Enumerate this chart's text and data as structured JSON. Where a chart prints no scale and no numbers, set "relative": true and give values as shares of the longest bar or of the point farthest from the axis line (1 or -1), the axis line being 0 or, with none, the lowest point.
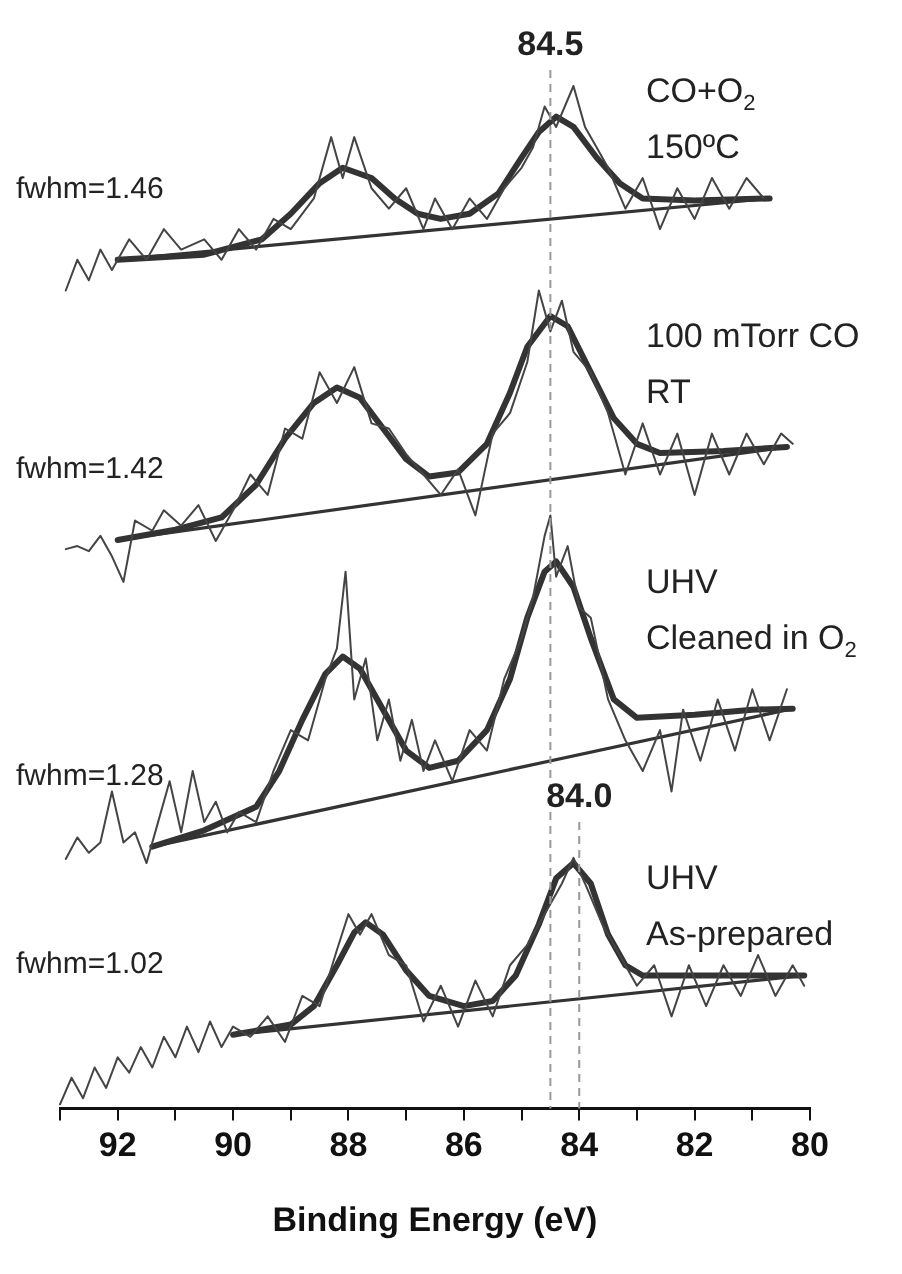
{
  "chart_data": {
    "type": "line",
    "relative": true,
    "xlabel": "Binding Energy (eV)",
    "xlim": [
      93,
      80
    ],
    "xticks": [
      {
        "value": 93,
        "label": null
      },
      92,
      {
        "value": 91,
        "label": null
      },
      90,
      {
        "value": 89,
        "label": null
      },
      88,
      {
        "value": 87,
        "label": null
      },
      86,
      {
        "value": 85,
        "label": null
      },
      84,
      {
        "value": 83,
        "label": null
      },
      82,
      {
        "value": 81,
        "label": null
      },
      80
    ],
    "legend": false,
    "marker": "none",
    "line_style": "solid",
    "series": [
      {
        "name": "CO+O$_{2}$\n150ºC",
        "color": "#444444",
        "x": [
          92.9,
          92.7,
          92.5,
          92.3,
          92.1,
          91.8,
          91.5,
          91.2,
          90.9,
          90.5,
          90.2,
          89.9,
          89.6,
          89.3,
          89.0,
          88.6,
          88.3,
          88.1,
          87.9,
          87.6,
          87.3,
          87.0,
          86.7,
          86.5,
          86.2,
          85.9,
          85.6,
          85.3,
          85.0,
          84.8,
          84.6,
          84.4,
          84.1,
          83.9,
          83.7,
          83.5,
          83.2,
          82.9,
          82.6,
          82.3,
          82.0,
          81.7,
          81.4,
          81.1,
          80.8
        ],
        "values": [
          0.8,
          0.83,
          0.81,
          0.84,
          0.82,
          0.85,
          0.83,
          0.86,
          0.84,
          0.85,
          0.83,
          0.86,
          0.84,
          0.87,
          0.86,
          0.89,
          0.95,
          0.91,
          0.95,
          0.9,
          0.88,
          0.9,
          0.86,
          0.89,
          0.86,
          0.89,
          0.87,
          0.9,
          0.92,
          0.94,
          0.98,
          0.96,
          1.0,
          0.96,
          0.94,
          0.92,
          0.88,
          0.91,
          0.86,
          0.9,
          0.87,
          0.91,
          0.88,
          0.91,
          0.89
        ]
      },
      {
        "color": "#333333",
        "x": [
          92,
          90.5,
          89.5,
          89,
          88.5,
          88.1,
          87.6,
          87.2,
          86.8,
          86.4,
          85.9,
          85.4,
          85,
          84.7,
          84.4,
          84.1,
          83.7,
          83.3,
          82.9,
          82,
          80.7
        ],
        "values": [
          0.83,
          0.835,
          0.85,
          0.875,
          0.905,
          0.92,
          0.91,
          0.89,
          0.875,
          0.87,
          0.875,
          0.895,
          0.93,
          0.955,
          0.97,
          0.96,
          0.93,
          0.905,
          0.89,
          0.888,
          0.89
        ]
      },
      {
        "color": "#333333",
        "x": [
          92,
          80.7
        ],
        "values": [
          0.83,
          0.89
        ]
      },
      {
        "name": "100 mTorr CO\nRT",
        "color": "#444444",
        "x": [
          92.9,
          92.7,
          92.5,
          92.3,
          92.1,
          91.9,
          91.7,
          91.4,
          91.2,
          90.9,
          90.6,
          90.3,
          90.0,
          89.7,
          89.4,
          89.1,
          88.8,
          88.5,
          88.2,
          87.9,
          87.6,
          87.3,
          87.0,
          86.7,
          86.4,
          86.1,
          85.8,
          85.5,
          85.2,
          84.9,
          84.7,
          84.5,
          84.3,
          84.1,
          83.8,
          83.5,
          83.2,
          82.9,
          82.6,
          82.3,
          82.0,
          81.7,
          81.4,
          81.1,
          80.8,
          80.5,
          80.3
        ],
        "values": [
          0.547,
          0.55,
          0.545,
          0.56,
          0.54,
          0.515,
          0.575,
          0.565,
          0.585,
          0.57,
          0.59,
          0.555,
          0.585,
          0.62,
          0.6,
          0.665,
          0.655,
          0.72,
          0.69,
          0.725,
          0.67,
          0.665,
          0.64,
          0.62,
          0.6,
          0.625,
          0.58,
          0.66,
          0.68,
          0.73,
          0.8,
          0.76,
          0.79,
          0.74,
          0.72,
          0.68,
          0.62,
          0.67,
          0.62,
          0.66,
          0.6,
          0.66,
          0.62,
          0.66,
          0.63,
          0.66,
          0.65
        ]
      },
      {
        "color": "#333333",
        "x": [
          92,
          91,
          90.2,
          89.6,
          89.1,
          88.6,
          88.2,
          87.8,
          87.4,
          87.0,
          86.6,
          86.1,
          85.6,
          85.2,
          84.9,
          84.5,
          84.2,
          83.8,
          83.4,
          83.0,
          82.6,
          81.5,
          80.4
        ],
        "values": [
          0.556,
          0.566,
          0.578,
          0.61,
          0.655,
          0.69,
          0.705,
          0.695,
          0.665,
          0.635,
          0.618,
          0.622,
          0.65,
          0.7,
          0.745,
          0.775,
          0.765,
          0.72,
          0.675,
          0.65,
          0.641,
          0.643,
          0.647
        ]
      },
      {
        "color": "#333333",
        "x": [
          92,
          80.4
        ],
        "values": [
          0.556,
          0.647
        ]
      },
      {
        "name": "UHV\nCleaned in O$_{2}$",
        "color": "#444444",
        "x": [
          92.9,
          92.7,
          92.5,
          92.3,
          92.1,
          91.9,
          91.7,
          91.5,
          91.3,
          91.1,
          90.9,
          90.7,
          90.5,
          90.3,
          90.1,
          89.9,
          89.6,
          89.3,
          89.0,
          88.7,
          88.4,
          88.2,
          88.05,
          87.9,
          87.7,
          87.5,
          87.3,
          87.1,
          86.9,
          86.7,
          86.5,
          86.2,
          85.9,
          85.6,
          85.3,
          85.0,
          84.8,
          84.6,
          84.5,
          84.4,
          84.2,
          84.0,
          83.8,
          83.5,
          83.2,
          82.9,
          82.6,
          82.4,
          82.2,
          81.9,
          81.6,
          81.3,
          81.0,
          80.7,
          80.4
        ],
        "values": [
          0.244,
          0.265,
          0.25,
          0.26,
          0.31,
          0.26,
          0.27,
          0.24,
          0.28,
          0.32,
          0.27,
          0.33,
          0.28,
          0.3,
          0.27,
          0.29,
          0.28,
          0.33,
          0.37,
          0.36,
          0.42,
          0.45,
          0.525,
          0.4,
          0.44,
          0.36,
          0.4,
          0.34,
          0.38,
          0.33,
          0.36,
          0.32,
          0.37,
          0.35,
          0.42,
          0.46,
          0.5,
          0.56,
          0.58,
          0.52,
          0.55,
          0.49,
          0.48,
          0.4,
          0.36,
          0.33,
          0.37,
          0.31,
          0.39,
          0.34,
          0.4,
          0.35,
          0.41,
          0.36,
          0.41
        ]
      },
      {
        "color": "#333333",
        "x": [
          91.4,
          90.5,
          89.6,
          89.2,
          88.8,
          88.4,
          88.1,
          87.8,
          87.4,
          87.0,
          86.6,
          86.1,
          85.6,
          85.2,
          84.9,
          84.6,
          84.4,
          84.1,
          83.8,
          83.4,
          83.0,
          82.0,
          81.0,
          80.3
        ],
        "values": [
          0.256,
          0.272,
          0.295,
          0.33,
          0.38,
          0.425,
          0.442,
          0.43,
          0.39,
          0.35,
          0.333,
          0.34,
          0.37,
          0.42,
          0.48,
          0.525,
          0.535,
          0.51,
          0.46,
          0.4,
          0.382,
          0.385,
          0.39,
          0.391
        ]
      },
      {
        "color": "#333333",
        "x": [
          91.4,
          80.3
        ],
        "values": [
          0.256,
          0.391
        ]
      },
      {
        "name": "UHV\nAs-prepared",
        "color": "#444444",
        "x": [
          93.0,
          92.8,
          92.6,
          92.4,
          92.2,
          92.0,
          91.8,
          91.6,
          91.4,
          91.2,
          91.0,
          90.8,
          90.6,
          90.4,
          90.2,
          90.0,
          89.7,
          89.4,
          89.1,
          88.8,
          88.5,
          88.2,
          88.0,
          87.8,
          87.6,
          87.3,
          87.0,
          86.7,
          86.4,
          86.1,
          85.8,
          85.5,
          85.2,
          84.9,
          84.6,
          84.3,
          84.1,
          83.9,
          83.6,
          83.3,
          83.0,
          82.7,
          82.4,
          82.1,
          81.8,
          81.5,
          81.2,
          80.9,
          80.6,
          80.3,
          80.1
        ],
        "values": [
          0.004,
          0.03,
          0.01,
          0.04,
          0.02,
          0.05,
          0.035,
          0.06,
          0.04,
          0.07,
          0.05,
          0.08,
          0.055,
          0.085,
          0.06,
          0.08,
          0.07,
          0.09,
          0.065,
          0.11,
          0.1,
          0.155,
          0.19,
          0.17,
          0.19,
          0.15,
          0.14,
          0.085,
          0.12,
          0.08,
          0.125,
          0.09,
          0.14,
          0.16,
          0.19,
          0.22,
          0.245,
          0.22,
          0.18,
          0.15,
          0.12,
          0.14,
          0.09,
          0.14,
          0.1,
          0.14,
          0.11,
          0.15,
          0.11,
          0.14,
          0.12
        ]
      },
      {
        "color": "#333333",
        "x": [
          90,
          89,
          88.6,
          88.2,
          87.9,
          87.7,
          87.4,
          87.0,
          86.6,
          86.0,
          85.5,
          85.1,
          84.7,
          84.4,
          84.1,
          83.8,
          83.5,
          83.2,
          82.9,
          81.5,
          80.1
        ],
        "values": [
          0.072,
          0.082,
          0.1,
          0.14,
          0.172,
          0.182,
          0.17,
          0.135,
          0.11,
          0.1,
          0.105,
          0.13,
          0.18,
          0.225,
          0.24,
          0.22,
          0.17,
          0.14,
          0.13,
          0.13,
          0.13
        ]
      },
      {
        "color": "#333333",
        "x": [
          90,
          80.1
        ],
        "values": [
          0.072,
          0.13
        ]
      }
    ],
    "ref_lines": [
      {
        "axis": "x",
        "value": 84.5,
        "label": "84.5",
        "color": "#999999",
        "line_style": "dashed"
      },
      {
        "axis": "x",
        "value": 84.0,
        "label": "84.0",
        "color": "#999999",
        "line_style": "dashed"
      }
    ],
    "annotations": [
      "fwhm=1.46",
      "fwhm=1.42",
      "fwhm=1.28",
      "fwhm=1.02"
    ]
  }
}
